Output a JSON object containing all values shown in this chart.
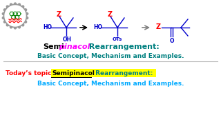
{
  "bg_color": "#ffffff",
  "title_semi": "Semi",
  "title_pinacol": "pinacol",
  "title_rearrangement": " Rearrangement:",
  "subtitle": "Basic Concept, Mechanism and Examples.",
  "today_label": "Today’s topic: ",
  "today_semi": "Semipinacol",
  "today_rearrangement": " Rearrangement:",
  "today_subtitle": "Basic Concept, Mechanism and Examples.",
  "color_black": "#000000",
  "color_magenta": "#ff00ff",
  "color_teal": "#008080",
  "color_red": "#ff0000",
  "color_blue": "#0000cc",
  "color_gray": "#888888",
  "color_red_today": "#ff0000",
  "color_cyan": "#00aaff",
  "color_yellow_bg": "#ffff00"
}
